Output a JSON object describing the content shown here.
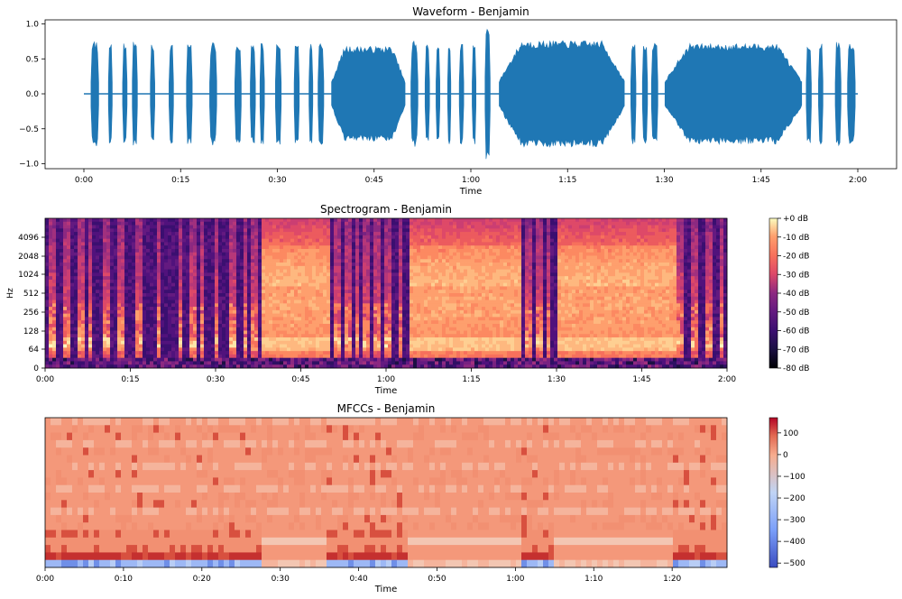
{
  "chart_data": [
    {
      "type": "line",
      "title": "Waveform - Benjamin",
      "xlabel": "Time",
      "ylabel": "",
      "xlim": [
        0,
        120
      ],
      "ylim": [
        -1.05,
        1.05
      ],
      "x_ticks": [
        {
          "value": 0,
          "label": "0:00"
        },
        {
          "value": 15,
          "label": "0:15"
        },
        {
          "value": 30,
          "label": "0:30"
        },
        {
          "value": 45,
          "label": "0:45"
        },
        {
          "value": 60,
          "label": "1:00"
        },
        {
          "value": 75,
          "label": "1:15"
        },
        {
          "value": 90,
          "label": "1:30"
        },
        {
          "value": 105,
          "label": "1:45"
        },
        {
          "value": 120,
          "label": "2:00"
        }
      ],
      "y_ticks": [
        {
          "value": 1.0,
          "label": "1.0"
        },
        {
          "value": 0.5,
          "label": "0.5"
        },
        {
          "value": 0.0,
          "label": "0.0"
        },
        {
          "value": -0.5,
          "label": "−0.5"
        },
        {
          "value": -1.0,
          "label": "−1.0"
        }
      ],
      "color": "#1f77b4",
      "segments": [
        {
          "start": 1.1,
          "end": 2.3,
          "amp": 0.75
        },
        {
          "start": 3.8,
          "end": 4.4,
          "amp": 0.72
        },
        {
          "start": 6.0,
          "end": 6.7,
          "amp": 0.72
        },
        {
          "start": 7.5,
          "end": 8.3,
          "amp": 0.75
        },
        {
          "start": 10.3,
          "end": 11.0,
          "amp": 0.7
        },
        {
          "start": 13.2,
          "end": 13.9,
          "amp": 0.72
        },
        {
          "start": 15.9,
          "end": 16.8,
          "amp": 0.72
        },
        {
          "start": 19.5,
          "end": 20.6,
          "amp": 0.75
        },
        {
          "start": 23.4,
          "end": 24.4,
          "amp": 0.72
        },
        {
          "start": 25.8,
          "end": 26.6,
          "amp": 0.7
        },
        {
          "start": 27.3,
          "end": 28.0,
          "amp": 0.72
        },
        {
          "start": 29.7,
          "end": 30.6,
          "amp": 0.75
        },
        {
          "start": 32.6,
          "end": 33.4,
          "amp": 0.73
        },
        {
          "start": 34.9,
          "end": 35.5,
          "amp": 0.72
        },
        {
          "start": 36.3,
          "end": 37.2,
          "amp": 0.75
        },
        {
          "start": 38.4,
          "end": 49.8,
          "amp": 0.68
        },
        {
          "start": 50.7,
          "end": 51.8,
          "amp": 0.76
        },
        {
          "start": 52.9,
          "end": 53.6,
          "amp": 0.72
        },
        {
          "start": 54.6,
          "end": 55.2,
          "amp": 0.72
        },
        {
          "start": 56.4,
          "end": 56.9,
          "amp": 0.72
        },
        {
          "start": 58.2,
          "end": 58.9,
          "amp": 0.72
        },
        {
          "start": 60.2,
          "end": 60.8,
          "amp": 0.72
        },
        {
          "start": 62.2,
          "end": 63.0,
          "amp": 0.97
        },
        {
          "start": 64.4,
          "end": 83.8,
          "amp": 0.76
        },
        {
          "start": 84.8,
          "end": 85.6,
          "amp": 0.72
        },
        {
          "start": 86.6,
          "end": 87.4,
          "amp": 0.72
        },
        {
          "start": 88.0,
          "end": 89.0,
          "amp": 0.74
        },
        {
          "start": 90.1,
          "end": 111.3,
          "amp": 0.72
        },
        {
          "start": 112.0,
          "end": 112.8,
          "amp": 0.72
        },
        {
          "start": 113.9,
          "end": 114.6,
          "amp": 0.74
        },
        {
          "start": 116.5,
          "end": 117.4,
          "amp": 0.74
        },
        {
          "start": 118.4,
          "end": 119.6,
          "amp": 0.74
        }
      ]
    },
    {
      "type": "heatmap",
      "title": "Spectrogram - Benjamin",
      "xlabel": "Time",
      "ylabel": "Hz",
      "xlim": [
        0,
        120
      ],
      "y_scale": "log-like (librosa log frequency)",
      "x_ticks": [
        {
          "value": 0,
          "label": "0:00"
        },
        {
          "value": 15,
          "label": "0:15"
        },
        {
          "value": 30,
          "label": "0:30"
        },
        {
          "value": 45,
          "label": "0:45"
        },
        {
          "value": 60,
          "label": "1:00"
        },
        {
          "value": 75,
          "label": "1:15"
        },
        {
          "value": 90,
          "label": "1:30"
        },
        {
          "value": 105,
          "label": "1:45"
        },
        {
          "value": 120,
          "label": "2:00"
        }
      ],
      "y_ticks": [
        "4096",
        "2048",
        "1024",
        "512",
        "256",
        "128",
        "64",
        "0"
      ],
      "colormap": "magma",
      "colorbar": {
        "range": [
          -80,
          0
        ],
        "ticks": [
          "+0 dB",
          "-10 dB",
          "-20 dB",
          "-30 dB",
          "-40 dB",
          "-50 dB",
          "-60 dB",
          "-70 dB",
          "-80 dB"
        ]
      },
      "loud_regions_seconds": [
        [
          38,
          50
        ],
        [
          64,
          84
        ],
        [
          90,
          111
        ]
      ]
    },
    {
      "type": "heatmap",
      "title": "MFCCs - Benjamin",
      "xlabel": "Time",
      "ylabel": "",
      "xlim": [
        0,
        87
      ],
      "x_ticks": [
        {
          "value": 0,
          "label": "0:00"
        },
        {
          "value": 10,
          "label": "0:10"
        },
        {
          "value": 20,
          "label": "0:20"
        },
        {
          "value": 30,
          "label": "0:30"
        },
        {
          "value": 40,
          "label": "0:40"
        },
        {
          "value": 50,
          "label": "0:50"
        },
        {
          "value": 60,
          "label": "1:00"
        },
        {
          "value": 70,
          "label": "1:10"
        },
        {
          "value": 80,
          "label": "1:20"
        }
      ],
      "colormap": "coolwarm",
      "colorbar": {
        "range": [
          -520,
          170
        ],
        "ticks": [
          "100",
          "0",
          "−100",
          "−200",
          "−300",
          "−400",
          "−500"
        ]
      },
      "n_coefficients": 20
    }
  ]
}
